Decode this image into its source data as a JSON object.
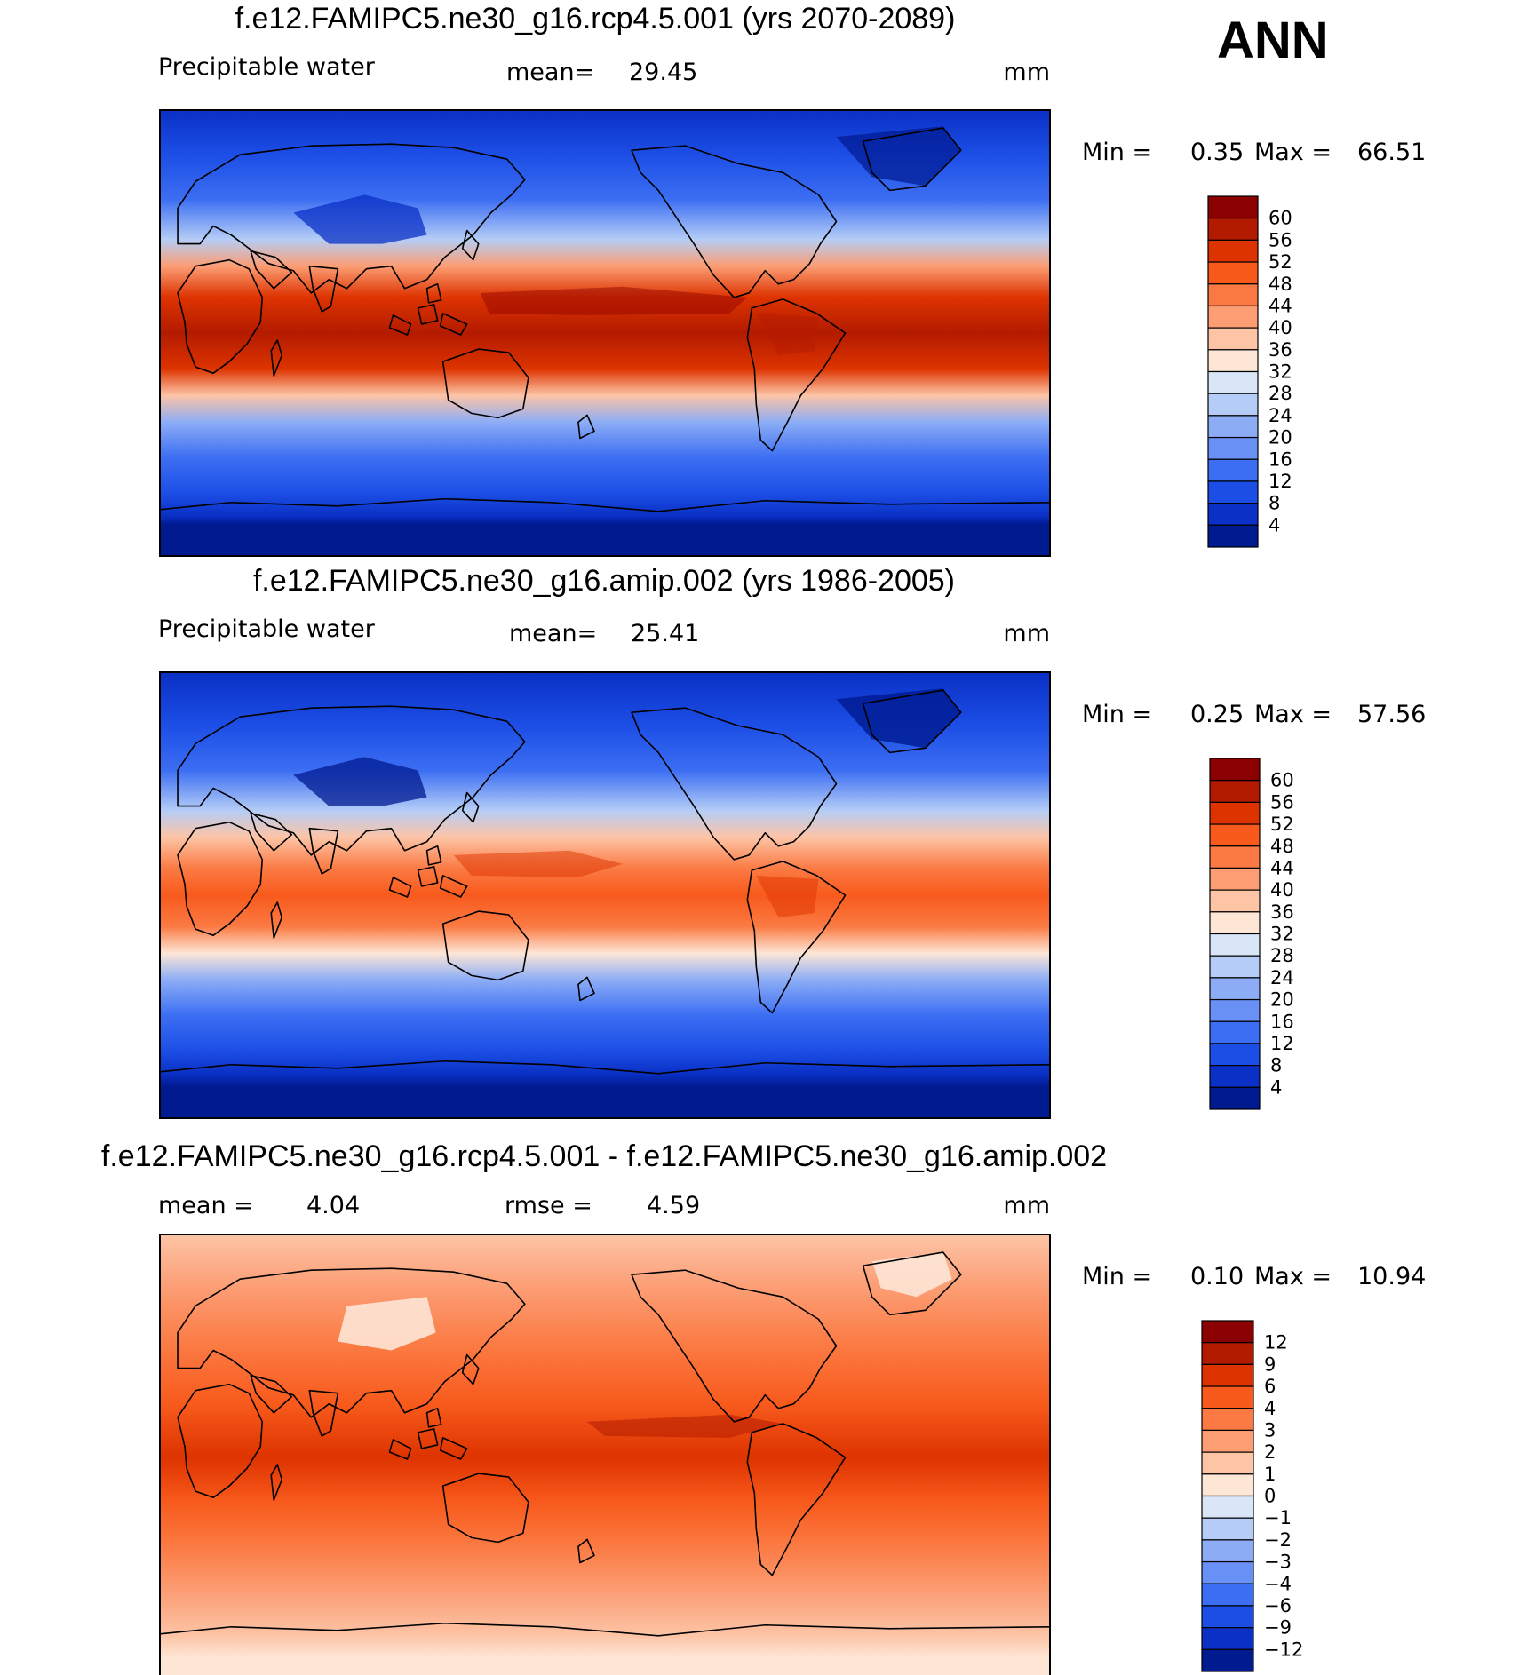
{
  "season": "ANN",
  "chart_data": [
    {
      "type": "heatmap",
      "title": "f.e12.FAMIPC5.ne30_g16.rcp4.5.001 (yrs 2070-2089)",
      "variable": "Precipitable water",
      "stat_label": "mean=",
      "stat_value": "29.45",
      "units": "mm",
      "min_label": "Min =",
      "min_value": "0.35",
      "max_label": "Max =",
      "max_value": "66.51",
      "colorbar_ticks": [
        "60",
        "56",
        "52",
        "48",
        "44",
        "40",
        "36",
        "32",
        "28",
        "24",
        "20",
        "16",
        "12",
        "8",
        "4"
      ],
      "colorbar_colors": [
        "#8b0000",
        "#b31b00",
        "#dd3300",
        "#f85a1c",
        "#fb7a43",
        "#fc9d74",
        "#fdc4a6",
        "#fde6d6",
        "#d8e6f7",
        "#b5cdf6",
        "#8cadf6",
        "#6890f5",
        "#3c6ef3",
        "#1c4ee6",
        "#0a30c5",
        "#001a90"
      ]
    },
    {
      "type": "heatmap",
      "title": "f.e12.FAMIPC5.ne30_g16.amip.002 (yrs 1986-2005)",
      "variable": "Precipitable water",
      "stat_label": "mean=",
      "stat_value": "25.41",
      "units": "mm",
      "min_label": "Min =",
      "min_value": "0.25",
      "max_label": "Max =",
      "max_value": "57.56",
      "colorbar_ticks": [
        "60",
        "56",
        "52",
        "48",
        "44",
        "40",
        "36",
        "32",
        "28",
        "24",
        "20",
        "16",
        "12",
        "8",
        "4"
      ],
      "colorbar_colors": [
        "#8b0000",
        "#b31b00",
        "#dd3300",
        "#f85a1c",
        "#fb7a43",
        "#fc9d74",
        "#fdc4a6",
        "#fde6d6",
        "#d8e6f7",
        "#b5cdf6",
        "#8cadf6",
        "#6890f5",
        "#3c6ef3",
        "#1c4ee6",
        "#0a30c5",
        "#001a90"
      ]
    },
    {
      "type": "heatmap",
      "title": "f.e12.FAMIPC5.ne30_g16.rcp4.5.001 - f.e12.FAMIPC5.ne30_g16.amip.002",
      "stat_label": "mean =",
      "stat_value": "4.04",
      "rmse_label": "rmse =",
      "rmse_value": "4.59",
      "units": "mm",
      "min_label": "Min =",
      "min_value": "0.10",
      "max_label": "Max =",
      "max_value": "10.94",
      "colorbar_ticks": [
        "12",
        "9",
        "6",
        "4",
        "3",
        "2",
        "1",
        "0",
        "−1",
        "−2",
        "−3",
        "−4",
        "−6",
        "−9",
        "−12"
      ],
      "colorbar_colors": [
        "#8b0000",
        "#b31b00",
        "#dd3300",
        "#f85a1c",
        "#fb7a43",
        "#fc9d74",
        "#fdc4a6",
        "#fde6d6",
        "#d8e6f7",
        "#b5cdf6",
        "#8cadf6",
        "#6890f5",
        "#3c6ef3",
        "#1c4ee6",
        "#0a30c5",
        "#001a90"
      ]
    }
  ]
}
